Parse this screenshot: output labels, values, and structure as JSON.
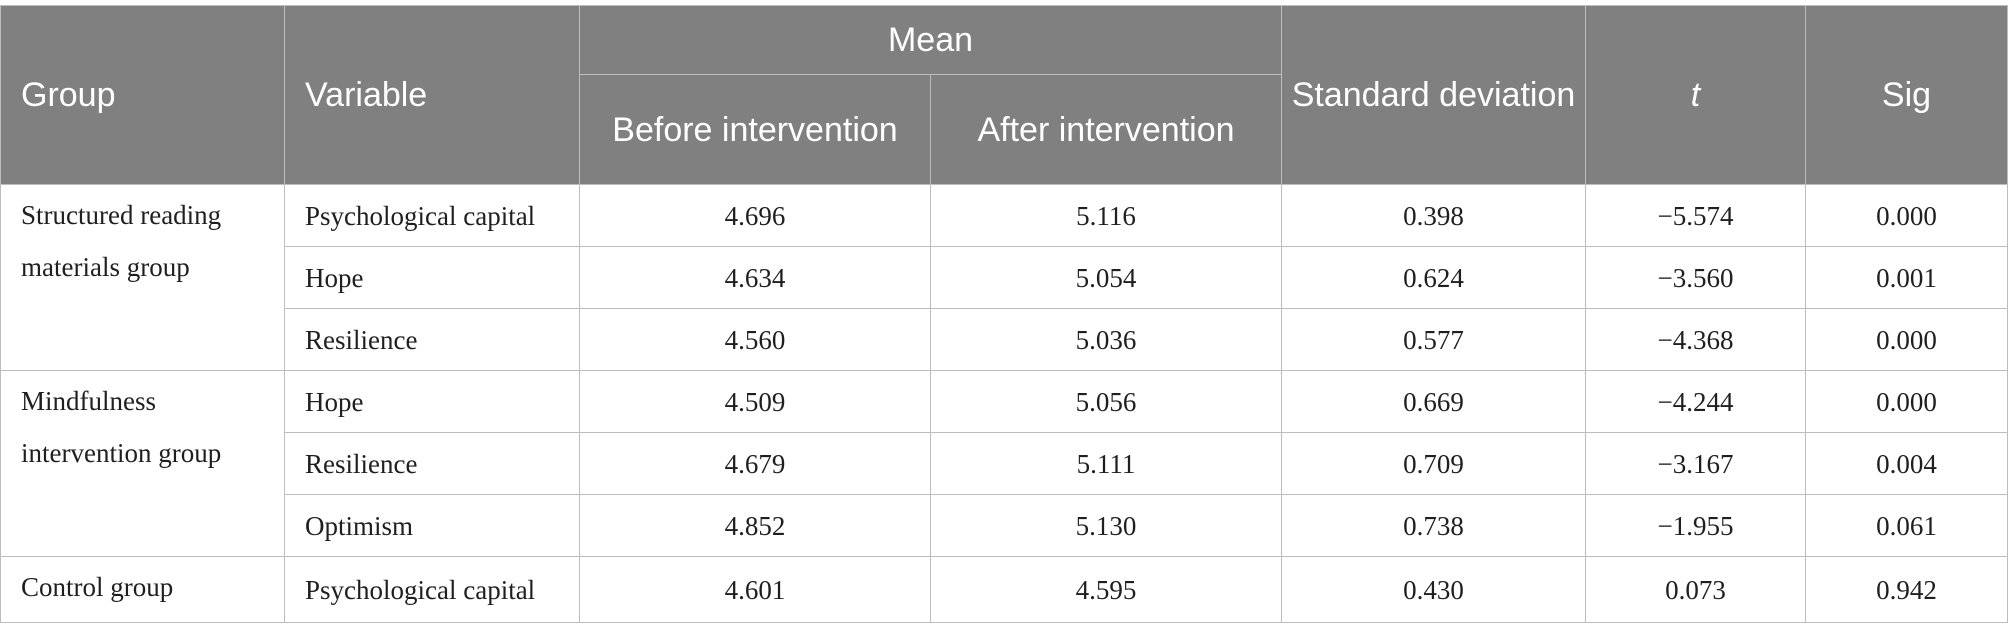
{
  "headers": {
    "group": "Group",
    "variable": "Variable",
    "mean": "Mean",
    "before": "Before intervention",
    "after": "After intervention",
    "sd": "Standard deviation",
    "t": "t",
    "sig": "Sig"
  },
  "groups": [
    {
      "name": "Structured reading materials group",
      "rows": [
        {
          "variable": "Psychological capital",
          "before": "4.696",
          "after": "5.116",
          "sd": "0.398",
          "t": "−5.574",
          "sig": "0.000"
        },
        {
          "variable": "Hope",
          "before": "4.634",
          "after": "5.054",
          "sd": "0.624",
          "t": "−3.560",
          "sig": "0.001"
        },
        {
          "variable": "Resilience",
          "before": "4.560",
          "after": "5.036",
          "sd": "0.577",
          "t": "−4.368",
          "sig": "0.000"
        }
      ]
    },
    {
      "name": "Mindfulness intervention group",
      "rows": [
        {
          "variable": "Hope",
          "before": "4.509",
          "after": "5.056",
          "sd": "0.669",
          "t": "−4.244",
          "sig": "0.000"
        },
        {
          "variable": "Resilience",
          "before": "4.679",
          "after": "5.111",
          "sd": "0.709",
          "t": "−3.167",
          "sig": "0.004"
        },
        {
          "variable": "Optimism",
          "before": "4.852",
          "after": "5.130",
          "sd": "0.738",
          "t": "−1.955",
          "sig": "0.061"
        }
      ]
    },
    {
      "name": "Control group",
      "rows": [
        {
          "variable": "Psychological capital",
          "before": "4.601",
          "after": "4.595",
          "sd": "0.430",
          "t": "0.073",
          "sig": "0.942"
        }
      ]
    }
  ]
}
